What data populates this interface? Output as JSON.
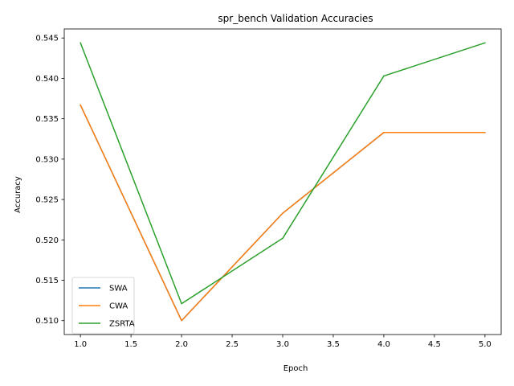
{
  "chart_data": {
    "type": "line",
    "title": "spr_bench Validation Accuracies",
    "xlabel": "Epoch",
    "ylabel": "Accuracy",
    "x": [
      1.0,
      2.0,
      3.0,
      4.0,
      5.0
    ],
    "xlim": [
      0.84,
      5.16
    ],
    "ylim": [
      0.50828,
      0.54612
    ],
    "xticks": [
      1.0,
      1.5,
      2.0,
      2.5,
      3.0,
      3.5,
      4.0,
      4.5,
      5.0
    ],
    "xtick_labels": [
      "1.0",
      "1.5",
      "2.0",
      "2.5",
      "3.0",
      "3.5",
      "4.0",
      "4.5",
      "5.0"
    ],
    "yticks": [
      0.51,
      0.515,
      0.52,
      0.525,
      0.53,
      0.535,
      0.54,
      0.545
    ],
    "ytick_labels": [
      "0.510",
      "0.515",
      "0.520",
      "0.525",
      "0.530",
      "0.535",
      "0.540",
      "0.545"
    ],
    "grid": false,
    "legend_position": "lower-left",
    "series": [
      {
        "name": "SWA",
        "color": "#1f77b4",
        "values": [
          0.5367,
          0.51,
          0.5233,
          0.5333,
          0.5333
        ]
      },
      {
        "name": "CWA",
        "color": "#ff7f0e",
        "values": [
          0.5367,
          0.51,
          0.5233,
          0.5333,
          0.5333
        ]
      },
      {
        "name": "ZSRTA",
        "color": "#2ca02c",
        "values": [
          0.5444,
          0.5121,
          0.5202,
          0.5403,
          0.5444
        ]
      }
    ]
  }
}
